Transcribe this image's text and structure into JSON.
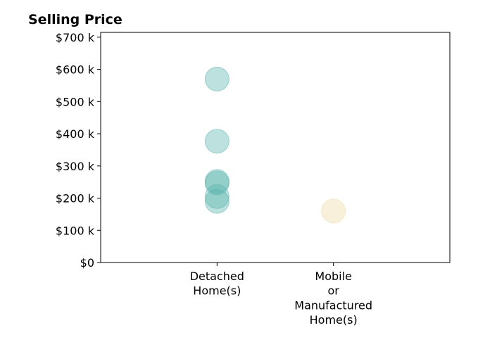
{
  "chart_data": {
    "type": "scatter",
    "title": "Selling Price",
    "xlabel": "",
    "ylabel": "",
    "categories": [
      [
        "Detached",
        "Home(s)"
      ],
      [
        "Mobile",
        "or",
        "Manufactured",
        "Home(s)"
      ]
    ],
    "y_ticks": [
      0,
      100000,
      200000,
      300000,
      400000,
      500000,
      600000,
      700000
    ],
    "y_tick_labels": [
      "$0",
      "$100 k",
      "$200 k",
      "$300 k",
      "$400 k",
      "$500 k",
      "$600 k",
      "$700 k"
    ],
    "ylim": [
      0,
      715000
    ],
    "xlim": [
      -1,
      2
    ],
    "grid": false,
    "series": [
      {
        "category_index": 0,
        "color": "#5ab4ac",
        "values": [
          570000,
          377000,
          252000,
          247000,
          205000,
          190000
        ]
      },
      {
        "category_index": 1,
        "color": "#f0d9a6",
        "values": [
          160000
        ]
      }
    ]
  }
}
